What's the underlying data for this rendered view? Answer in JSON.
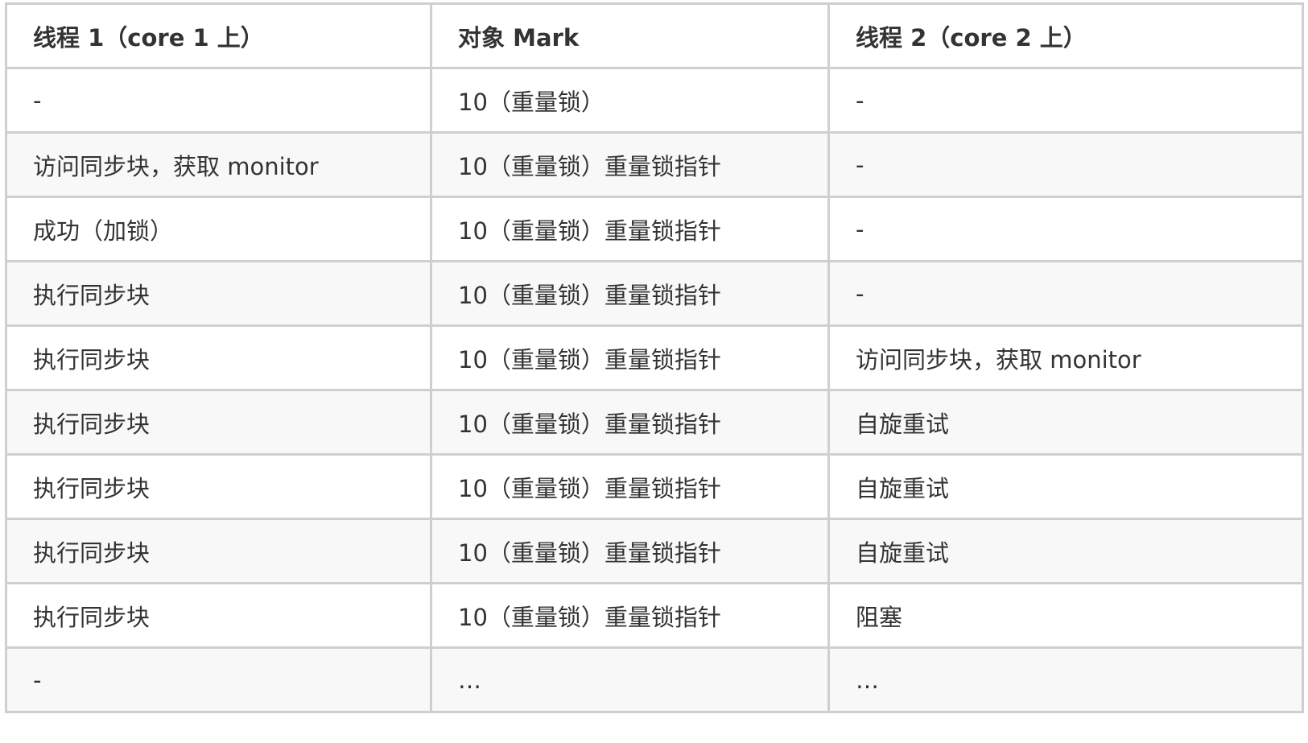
{
  "table": {
    "headers": [
      "线程 1（core 1 上）",
      "对象 Mark",
      "线程 2（core 2 上）"
    ],
    "rows": [
      [
        "-",
        "10（重量锁）",
        "-"
      ],
      [
        "访问同步块，获取 monitor",
        "10（重量锁）重量锁指针",
        "-"
      ],
      [
        "成功（加锁）",
        "10（重量锁）重量锁指针",
        "-"
      ],
      [
        "执行同步块",
        "10（重量锁）重量锁指针",
        "-"
      ],
      [
        "执行同步块",
        "10（重量锁）重量锁指针",
        "访问同步块，获取 monitor"
      ],
      [
        "执行同步块",
        "10（重量锁）重量锁指针",
        "自旋重试"
      ],
      [
        "执行同步块",
        "10（重量锁）重量锁指针",
        "自旋重试"
      ],
      [
        "执行同步块",
        "10（重量锁）重量锁指针",
        "自旋重试"
      ],
      [
        "执行同步块",
        "10（重量锁）重量锁指针",
        "阻塞"
      ],
      [
        "-",
        "…",
        "…"
      ]
    ]
  }
}
